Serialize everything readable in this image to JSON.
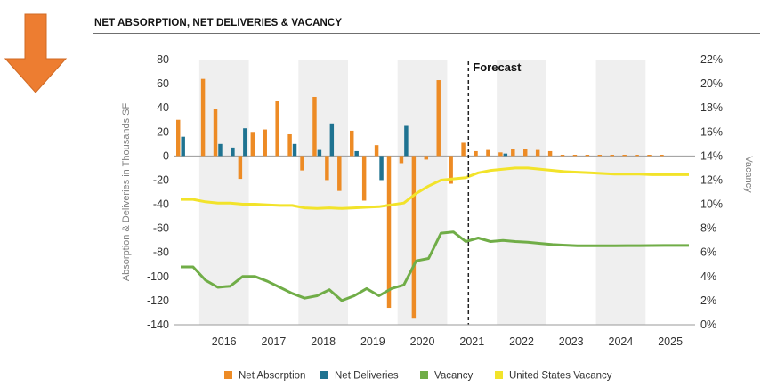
{
  "header": {
    "title": "NET ABSORPTION, NET DELIVERIES & VACANCY",
    "arrow_icon": "arrow-down-icon",
    "arrow_color": "#ED7D31"
  },
  "chart_data": {
    "type": "bar+line",
    "title": "NET ABSORPTION, NET DELIVERIES & VACANCY",
    "ylabel_left": "Absorption & Deliveries in Thousands SF",
    "ylabel_right": "Vacancy",
    "ylim_left": [
      -140,
      80
    ],
    "ylim_right": [
      0,
      22
    ],
    "left_ticks": [
      "80",
      "60",
      "40",
      "20",
      "0",
      "-20",
      "-40",
      "-60",
      "-80",
      "-100",
      "-120",
      "-140"
    ],
    "right_ticks": [
      "22%",
      "20%",
      "18%",
      "16%",
      "14%",
      "12%",
      "10%",
      "8%",
      "6%",
      "4%",
      "2%",
      "0%"
    ],
    "x_categories": [
      "2016",
      "2017",
      "2018",
      "2019",
      "2020",
      "2021",
      "2022",
      "2023",
      "2024",
      "2025"
    ],
    "forecast_label": "Forecast",
    "forecast_start": 2021.5,
    "grid": "vertical year bands",
    "colors": {
      "absorption": "#ED8B25",
      "deliveries": "#1F7391",
      "vacancy": "#70AD47",
      "us_vacancy": "#F2E32A"
    },
    "quarters": [
      "2015Q3",
      "2015Q4",
      "2016Q1",
      "2016Q2",
      "2016Q3",
      "2016Q4",
      "2017Q1",
      "2017Q2",
      "2017Q3",
      "2017Q4",
      "2018Q1",
      "2018Q2",
      "2018Q3",
      "2018Q4",
      "2019Q1",
      "2019Q2",
      "2019Q3",
      "2019Q4",
      "2020Q1",
      "2020Q2",
      "2020Q3",
      "2020Q4",
      "2021Q1",
      "2021Q2",
      "2021Q3",
      "2021Q4",
      "2022Q1",
      "2022Q2",
      "2022Q3",
      "2022Q4",
      "2023Q1",
      "2023Q2",
      "2023Q3",
      "2023Q4",
      "2024Q1",
      "2024Q2",
      "2024Q3",
      "2024Q4",
      "2025Q1",
      "2025Q2",
      "2025Q3",
      "2025Q4"
    ],
    "series": [
      {
        "name": "Net Absorption",
        "kind": "bar",
        "values": [
          30,
          0,
          64,
          39,
          0,
          -19,
          20,
          22,
          46,
          18,
          -12,
          49,
          -20,
          -29,
          21,
          -37,
          9,
          -126,
          -6,
          -135,
          -3,
          63,
          -23,
          11,
          4,
          5,
          3,
          6,
          6,
          5,
          4,
          1,
          1,
          1,
          1,
          1,
          1,
          1,
          1,
          1,
          0,
          0
        ]
      },
      {
        "name": "Net Deliveries",
        "kind": "bar",
        "values": [
          16,
          0,
          0,
          10,
          7,
          23,
          0,
          0,
          0,
          10,
          0,
          5,
          27,
          0,
          4,
          0,
          -20,
          0,
          25,
          0,
          0,
          0,
          0,
          0,
          0,
          0,
          2,
          0,
          0,
          0,
          0,
          0,
          0,
          0,
          0,
          0,
          0,
          0,
          0,
          0,
          0,
          0
        ]
      },
      {
        "name": "Vacancy",
        "kind": "line",
        "values": [
          4.8,
          4.8,
          3.7,
          3.1,
          3.2,
          4.0,
          4.0,
          3.6,
          3.1,
          2.6,
          2.2,
          2.4,
          2.9,
          2.0,
          2.4,
          3.0,
          2.4,
          3.0,
          3.3,
          5.3,
          5.5,
          7.6,
          7.7,
          6.9,
          7.2,
          6.9,
          7.0,
          6.9,
          6.85,
          6.75,
          6.65,
          6.6,
          6.55,
          6.55,
          6.55,
          6.55,
          6.56,
          6.56,
          6.57,
          6.58,
          6.58,
          6.58
        ]
      },
      {
        "name": "United States Vacancy",
        "kind": "line",
        "values": [
          10.4,
          10.4,
          10.2,
          10.1,
          10.1,
          10.0,
          10.0,
          9.95,
          9.9,
          9.9,
          9.7,
          9.65,
          9.7,
          9.65,
          9.7,
          9.75,
          9.8,
          9.95,
          10.1,
          10.9,
          11.5,
          12.0,
          12.1,
          12.2,
          12.6,
          12.8,
          12.9,
          13.0,
          13.0,
          12.9,
          12.8,
          12.7,
          12.65,
          12.6,
          12.55,
          12.5,
          12.5,
          12.5,
          12.45,
          12.45,
          12.45,
          12.45
        ]
      }
    ],
    "legend": [
      {
        "label": "Net Absorption",
        "color": "#ED8B25"
      },
      {
        "label": "Net Deliveries",
        "color": "#1F7391"
      },
      {
        "label": "Vacancy",
        "color": "#70AD47"
      },
      {
        "label": "United States Vacancy",
        "color": "#F2E32A"
      }
    ],
    "legend_position": "bottom"
  }
}
